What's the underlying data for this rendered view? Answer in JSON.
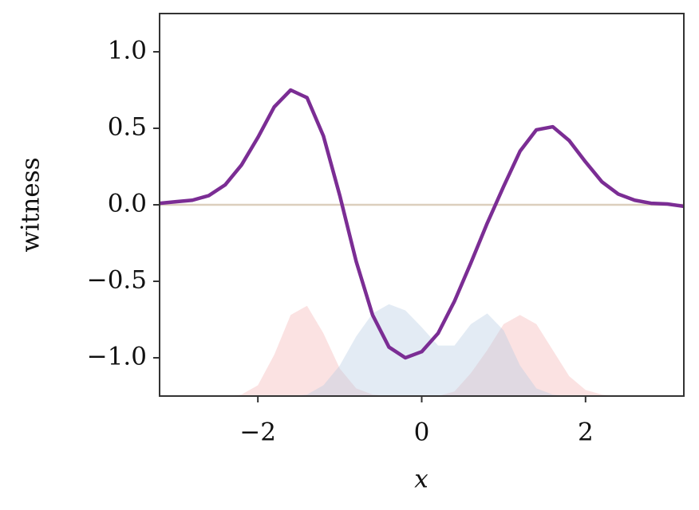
{
  "chart_data": {
    "type": "line",
    "xlabel": "x",
    "ylabel": "witness",
    "xlim": [
      -3.2,
      3.2
    ],
    "ylim": [
      -1.25,
      1.25
    ],
    "xticks": [
      {
        "value": -2,
        "label": "−2"
      },
      0,
      2
    ],
    "yticks": [
      {
        "value": 1,
        "label": "1.0"
      },
      {
        "value": 0.5,
        "label": "0.5"
      },
      {
        "value": 0,
        "label": "0.0"
      },
      {
        "value": -0.5,
        "label": "−0.5"
      },
      {
        "value": -1,
        "label": "−1.0"
      }
    ],
    "hline": 0,
    "hline_color": "#dccfbd",
    "x": [
      -3.2,
      -3.0,
      -2.8,
      -2.6,
      -2.4,
      -2.2,
      -2.0,
      -1.8,
      -1.6,
      -1.4,
      -1.2,
      -1.0,
      -0.8,
      -0.6,
      -0.4,
      -0.2,
      0.0,
      0.2,
      0.4,
      0.6,
      0.8,
      1.0,
      1.2,
      1.4,
      1.6,
      1.8,
      2.0,
      2.2,
      2.4,
      2.6,
      2.8,
      3.0,
      3.2
    ],
    "series": [
      {
        "style": "area",
        "color": "#f4b6b6",
        "values": [
          -1.25,
          -1.25,
          -1.25,
          -1.25,
          -1.25,
          -1.24,
          -1.18,
          -0.98,
          -0.72,
          -0.66,
          -0.84,
          -1.07,
          -1.2,
          -1.24,
          -1.25,
          -1.25,
          -1.25,
          -1.25,
          -1.22,
          -1.1,
          -0.95,
          -0.78,
          -0.72,
          -0.78,
          -0.95,
          -1.12,
          -1.21,
          -1.24,
          -1.25,
          -1.25,
          -1.25,
          -1.25,
          -1.25
        ]
      },
      {
        "style": "area",
        "color": "#b9cce3",
        "values": [
          -1.25,
          -1.25,
          -1.25,
          -1.25,
          -1.25,
          -1.25,
          -1.25,
          -1.25,
          -1.25,
          -1.24,
          -1.18,
          -1.05,
          -0.86,
          -0.71,
          -0.65,
          -0.69,
          -0.8,
          -0.92,
          -0.92,
          -0.78,
          -0.71,
          -0.82,
          -1.05,
          -1.2,
          -1.24,
          -1.25,
          -1.25,
          -1.25,
          -1.25,
          -1.25,
          -1.25,
          -1.25,
          -1.25
        ]
      },
      {
        "style": "line",
        "color": "#7b2d94",
        "values": [
          0.01,
          0.02,
          0.03,
          0.06,
          0.13,
          0.26,
          0.44,
          0.64,
          0.75,
          0.7,
          0.45,
          0.06,
          -0.37,
          -0.72,
          -0.93,
          -1.0,
          -0.96,
          -0.84,
          -0.63,
          -0.38,
          -0.12,
          0.12,
          0.35,
          0.49,
          0.51,
          0.42,
          0.28,
          0.15,
          0.07,
          0.03,
          0.01,
          0.005,
          -0.01
        ]
      }
    ]
  }
}
